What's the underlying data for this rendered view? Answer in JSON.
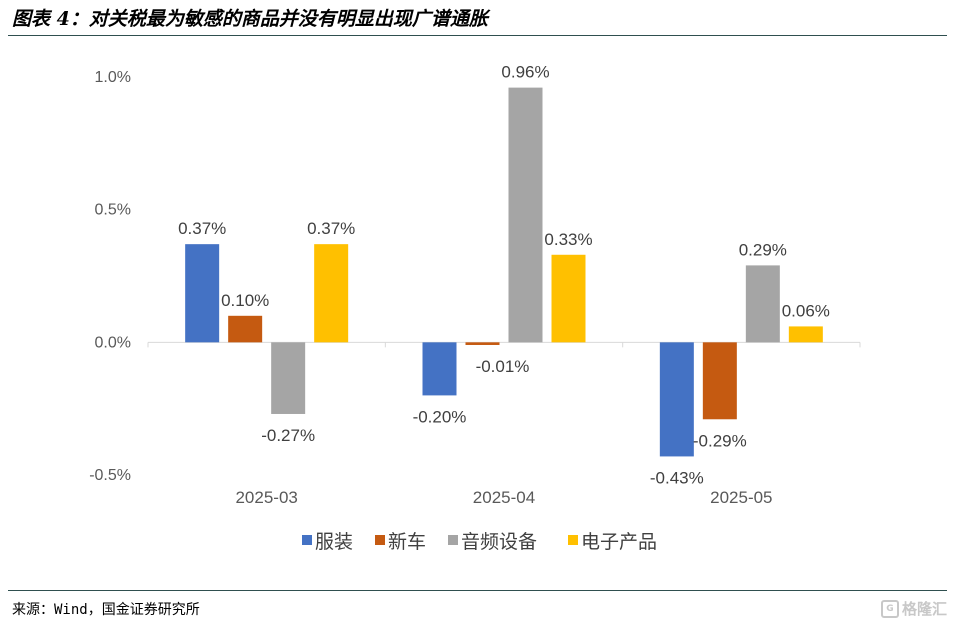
{
  "title": "图表 4：对关税最为敏感的商品并没有明显出现广谱通胀",
  "source": "来源：Wind，国金证券研究所",
  "watermark": "格隆汇",
  "chart_data": {
    "type": "bar",
    "categories": [
      "2025-03",
      "2025-04",
      "2025-05"
    ],
    "series": [
      {
        "name": "服装",
        "color": "#4472C4",
        "values": [
          0.37,
          -0.2,
          -0.43
        ],
        "labels": [
          "0.37%",
          "-0.20%",
          "-0.43%"
        ]
      },
      {
        "name": "新车",
        "color": "#C55A11",
        "values": [
          0.1,
          -0.01,
          -0.29
        ],
        "labels": [
          "0.10%",
          "-0.01%",
          "-0.29%"
        ]
      },
      {
        "name": "音频设备",
        "color": "#A5A5A5",
        "values": [
          -0.27,
          0.96,
          0.29
        ],
        "labels": [
          "-0.27%",
          "0.96%",
          "0.29%"
        ]
      },
      {
        "name": "电子产品",
        "color": "#FFC000",
        "values": [
          0.37,
          0.33,
          0.06
        ],
        "labels": [
          "0.37%",
          "0.33%",
          "0.06%"
        ]
      }
    ],
    "ylim": [
      -0.5,
      1.0
    ],
    "yticks": [
      1.0,
      0.5,
      0.0,
      -0.5
    ],
    "ytick_labels": [
      "1.0%",
      "0.5%",
      "0.0%",
      "-0.5%"
    ],
    "legend_position": "bottom",
    "grid": false
  }
}
